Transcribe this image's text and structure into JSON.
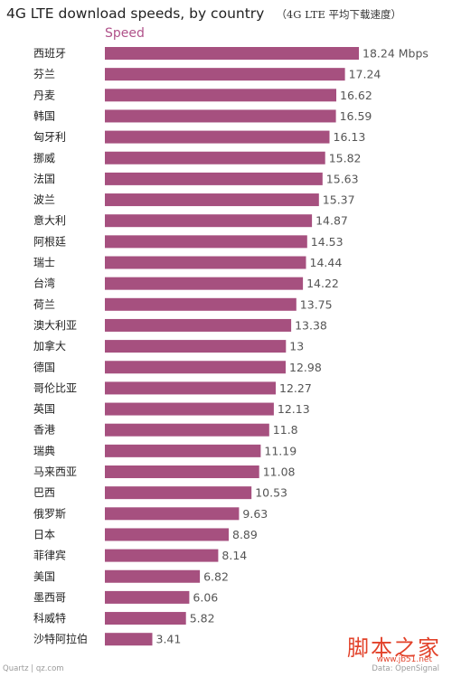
{
  "header": {
    "title": "4G LTE download speeds, by country",
    "subtitle": "（4G LTE 平均下载速度）"
  },
  "legend": {
    "label": "Speed"
  },
  "footer": {
    "left": "Quartz | qz.com",
    "right": "Data: OpenSignal"
  },
  "watermark": {
    "text": "脚本之家",
    "url": "www.jb51.net"
  },
  "colors": {
    "bar": "#a6507f",
    "text": "#222222",
    "value": "#555555"
  },
  "chart_data": {
    "type": "bar",
    "orientation": "horizontal",
    "title": "4G LTE download speeds, by country",
    "series": [
      {
        "name": "Speed",
        "unit": "Mbps"
      }
    ],
    "categories": [
      "西班牙",
      "芬兰",
      "丹麦",
      "韩国",
      "匈牙利",
      "挪威",
      "法国",
      "波兰",
      "意大利",
      "阿根廷",
      "瑞士",
      "台湾",
      "荷兰",
      "澳大利亚",
      "加拿大",
      "德国",
      "哥伦比亚",
      "英国",
      "香港",
      "瑞典",
      "马来西亚",
      "巴西",
      "俄罗斯",
      "日本",
      "菲律宾",
      "美国",
      "墨西哥",
      "科威特",
      "沙特阿拉伯"
    ],
    "values": [
      18.24,
      17.24,
      16.62,
      16.59,
      16.13,
      15.82,
      15.63,
      15.37,
      14.87,
      14.53,
      14.44,
      14.22,
      13.75,
      13.38,
      13,
      12.98,
      12.27,
      12.13,
      11.8,
      11.19,
      11.08,
      10.53,
      9.63,
      8.89,
      8.14,
      6.82,
      6.06,
      5.82,
      3.41
    ],
    "value_labels": [
      "18.24 Mbps",
      "17.24",
      "16.62",
      "16.59",
      "16.13",
      "15.82",
      "15.63",
      "15.37",
      "14.87",
      "14.53",
      "14.44",
      "14.22",
      "13.75",
      "13.38",
      "13",
      "12.98",
      "12.27",
      "12.13",
      "11.8",
      "11.19",
      "11.08",
      "10.53",
      "9.63",
      "8.89",
      "8.14",
      "6.82",
      "6.06",
      "5.82",
      "3.41"
    ],
    "xlim": [
      0,
      18.24
    ]
  }
}
